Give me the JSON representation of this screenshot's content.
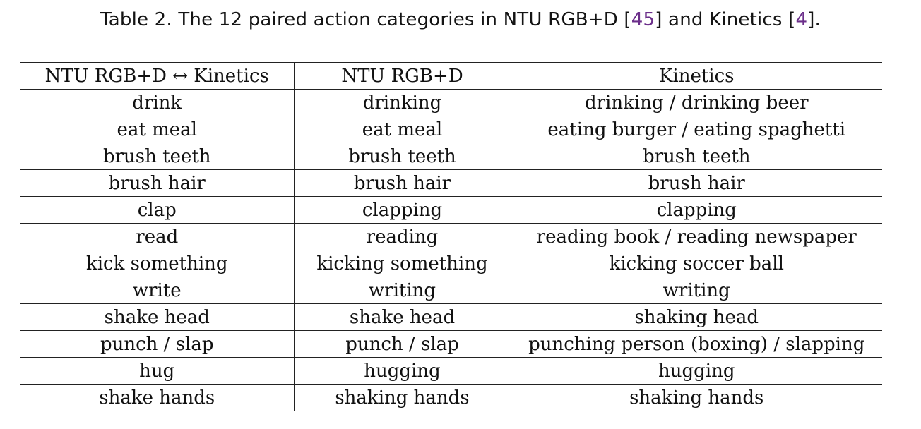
{
  "caption": {
    "prefix": "Table 2.  The 12 paired action categories in NTU RGB+D [",
    "ref1": "45",
    "middle": "] and Kinetics [",
    "ref2": "4",
    "suffix": "]."
  },
  "table": {
    "headers": [
      "NTU RGB+D ↔ Kinetics",
      "NTU RGB+D",
      "Kinetics"
    ],
    "rows": [
      [
        "drink",
        "drinking",
        "drinking / drinking beer"
      ],
      [
        "eat meal",
        "eat meal",
        "eating burger / eating spaghetti"
      ],
      [
        "brush teeth",
        "brush teeth",
        "brush teeth"
      ],
      [
        "brush hair",
        "brush hair",
        "brush hair"
      ],
      [
        "clap",
        "clapping",
        "clapping"
      ],
      [
        "read",
        "reading",
        "reading book / reading newspaper"
      ],
      [
        "kick something",
        "kicking something",
        "kicking soccer ball"
      ],
      [
        "write",
        "writing",
        "writing"
      ],
      [
        "shake head",
        "shake head",
        "shaking head"
      ],
      [
        "punch / slap",
        "punch / slap",
        "punching person (boxing) / slapping"
      ],
      [
        "hug",
        "hugging",
        "hugging"
      ],
      [
        "shake hands",
        "shaking hands",
        "shaking hands"
      ]
    ]
  }
}
